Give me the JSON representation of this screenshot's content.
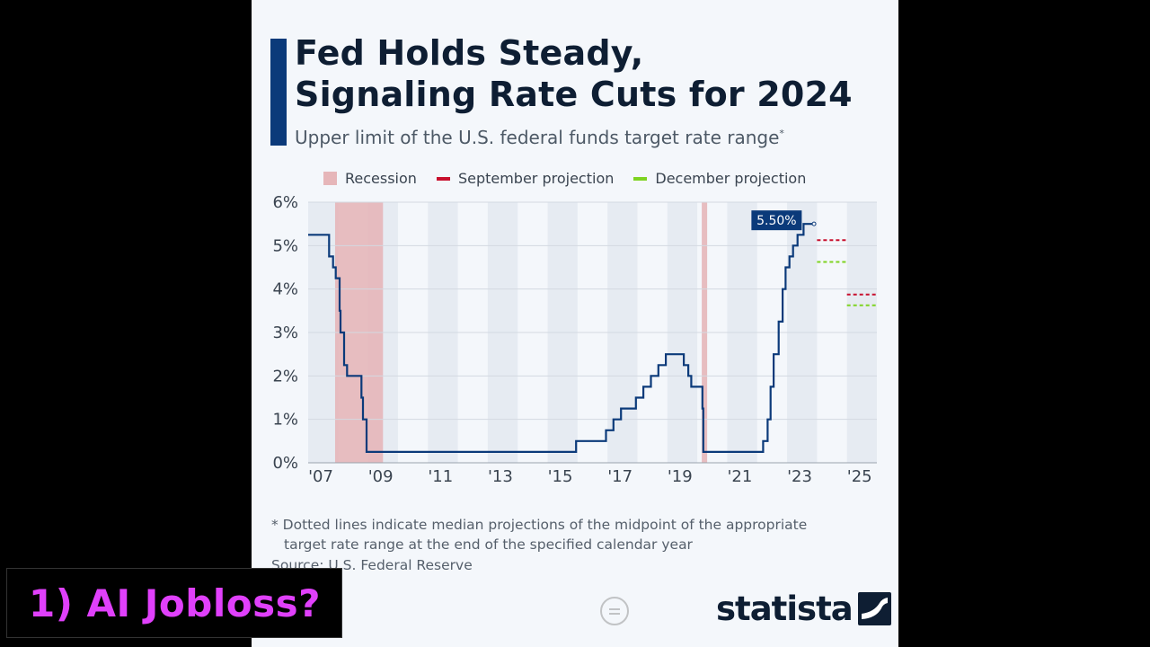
{
  "title": "Fed Holds Steady,\nSignaling Rate Cuts for 2024",
  "subtitle": "Upper limit of the U.S. federal funds target rate range",
  "subtitle_mark": "*",
  "legend": {
    "recession": "Recession",
    "september": "September projection",
    "december": "December projection"
  },
  "colors": {
    "line": "#0b3a7a",
    "recession": "#e6b6b9",
    "september": "#c8102e",
    "december": "#7ed321",
    "band": "#e6ebf2"
  },
  "chart_data": {
    "type": "line",
    "title": "Fed Holds Steady, Signaling Rate Cuts for 2024",
    "subtitle": "Upper limit of the U.S. federal funds target rate range",
    "xlim": [
      2007,
      2026
    ],
    "ylim": [
      0,
      6
    ],
    "grid": true,
    "legend_position": "top",
    "y_ticks": [
      "0%",
      "1%",
      "2%",
      "3%",
      "4%",
      "5%",
      "6%"
    ],
    "x_ticks": [
      {
        "year": 2007,
        "label": "'07"
      },
      {
        "year": 2009,
        "label": "'09"
      },
      {
        "year": 2011,
        "label": "'11"
      },
      {
        "year": 2013,
        "label": "'13"
      },
      {
        "year": 2015,
        "label": "'15"
      },
      {
        "year": 2017,
        "label": "'17"
      },
      {
        "year": 2019,
        "label": "'19"
      },
      {
        "year": 2021,
        "label": "'21"
      },
      {
        "year": 2023,
        "label": "'23"
      },
      {
        "year": 2025,
        "label": "'25"
      }
    ],
    "recessions": [
      [
        2007.9,
        2009.5
      ],
      [
        2020.15,
        2020.33
      ]
    ],
    "series": [
      {
        "name": "",
        "points": [
          [
            2007.0,
            5.25
          ],
          [
            2007.7,
            5.25
          ],
          [
            2007.7,
            4.75
          ],
          [
            2007.83,
            4.75
          ],
          [
            2007.83,
            4.5
          ],
          [
            2007.92,
            4.5
          ],
          [
            2007.92,
            4.25
          ],
          [
            2008.05,
            4.25
          ],
          [
            2008.05,
            3.5
          ],
          [
            2008.08,
            3.5
          ],
          [
            2008.08,
            3.0
          ],
          [
            2008.2,
            3.0
          ],
          [
            2008.2,
            2.25
          ],
          [
            2008.3,
            2.25
          ],
          [
            2008.3,
            2.0
          ],
          [
            2008.78,
            2.0
          ],
          [
            2008.78,
            1.5
          ],
          [
            2008.83,
            1.5
          ],
          [
            2008.83,
            1.0
          ],
          [
            2008.95,
            1.0
          ],
          [
            2008.95,
            0.25
          ],
          [
            2015.95,
            0.25
          ],
          [
            2015.95,
            0.5
          ],
          [
            2016.95,
            0.5
          ],
          [
            2016.95,
            0.75
          ],
          [
            2017.2,
            0.75
          ],
          [
            2017.2,
            1.0
          ],
          [
            2017.45,
            1.0
          ],
          [
            2017.45,
            1.25
          ],
          [
            2017.95,
            1.25
          ],
          [
            2017.95,
            1.5
          ],
          [
            2018.2,
            1.5
          ],
          [
            2018.2,
            1.75
          ],
          [
            2018.45,
            1.75
          ],
          [
            2018.45,
            2.0
          ],
          [
            2018.7,
            2.0
          ],
          [
            2018.7,
            2.25
          ],
          [
            2018.95,
            2.25
          ],
          [
            2018.95,
            2.5
          ],
          [
            2019.55,
            2.5
          ],
          [
            2019.55,
            2.25
          ],
          [
            2019.7,
            2.25
          ],
          [
            2019.7,
            2.0
          ],
          [
            2019.8,
            2.0
          ],
          [
            2019.8,
            1.75
          ],
          [
            2020.17,
            1.75
          ],
          [
            2020.17,
            1.25
          ],
          [
            2020.2,
            1.25
          ],
          [
            2020.2,
            0.25
          ],
          [
            2022.2,
            0.25
          ],
          [
            2022.2,
            0.5
          ],
          [
            2022.35,
            0.5
          ],
          [
            2022.35,
            1.0
          ],
          [
            2022.45,
            1.0
          ],
          [
            2022.45,
            1.75
          ],
          [
            2022.55,
            1.75
          ],
          [
            2022.55,
            2.5
          ],
          [
            2022.72,
            2.5
          ],
          [
            2022.72,
            3.25
          ],
          [
            2022.85,
            3.25
          ],
          [
            2022.85,
            4.0
          ],
          [
            2022.95,
            4.0
          ],
          [
            2022.95,
            4.5
          ],
          [
            2023.08,
            4.5
          ],
          [
            2023.08,
            4.75
          ],
          [
            2023.2,
            4.75
          ],
          [
            2023.2,
            5.0
          ],
          [
            2023.35,
            5.0
          ],
          [
            2023.35,
            5.25
          ],
          [
            2023.55,
            5.25
          ],
          [
            2023.55,
            5.5
          ],
          [
            2023.9,
            5.5
          ]
        ]
      }
    ],
    "projections": [
      {
        "name": "September projection",
        "year": 2024,
        "x_range": [
          2024.0,
          2025.0
        ],
        "value": 5.125
      },
      {
        "name": "September projection",
        "year": 2025,
        "x_range": [
          2025.0,
          2026.0
        ],
        "value": 3.875
      },
      {
        "name": "December projection",
        "year": 2024,
        "x_range": [
          2024.0,
          2025.0
        ],
        "value": 4.625
      },
      {
        "name": "December projection",
        "year": 2025,
        "x_range": [
          2025.0,
          2026.0
        ],
        "value": 3.625
      }
    ],
    "annotations": [
      {
        "text": "5.50%",
        "x": 2023.55,
        "y": 5.5
      }
    ]
  },
  "footnote": {
    "line1": "* Dotted lines indicate median projections of the midpoint of the appropriate",
    "line2": "target rate range at the end of the specified calendar year"
  },
  "source": "Source: U.S. Federal Reserve",
  "brand": "statista",
  "overlay_caption": "1) AI Jobloss?"
}
